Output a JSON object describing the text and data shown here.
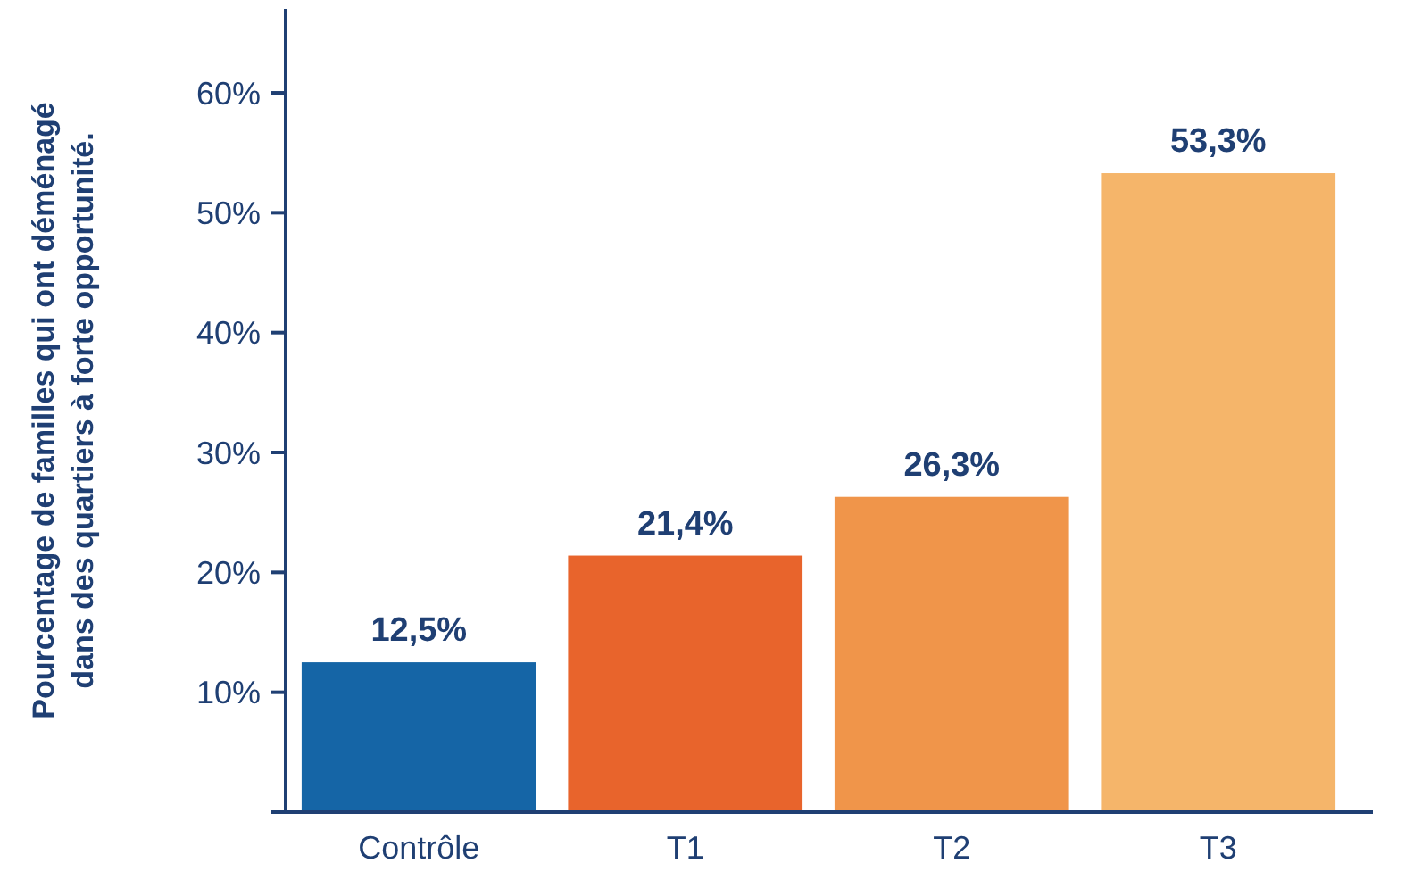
{
  "chart_data": {
    "type": "bar",
    "ylabel": "Pourcentage de familles qui ont déménagé\ndans des quartiers à forte opportunité.",
    "categories": [
      "Contrôle",
      "T1",
      "T2",
      "T3"
    ],
    "values": [
      12.5,
      21.4,
      26.3,
      53.3
    ],
    "colors": [
      "#1565a6",
      "#e8642c",
      "#f0954a",
      "#f5b56a"
    ],
    "value_labels": [
      "12,5%",
      "21,4%",
      "26,3%",
      "53,3%"
    ],
    "ylim": [
      0,
      67
    ],
    "yticks": [
      {
        "value": 10,
        "label": "10%"
      },
      {
        "value": 20,
        "label": "20%"
      },
      {
        "value": 30,
        "label": "30%"
      },
      {
        "value": 40,
        "label": "40%"
      },
      {
        "value": 50,
        "label": "50%"
      },
      {
        "value": 60,
        "label": "60%"
      }
    ],
    "grid": false
  }
}
